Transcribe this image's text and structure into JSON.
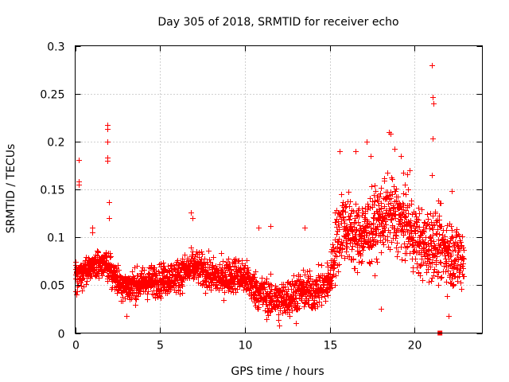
{
  "chart_data": {
    "type": "scatter",
    "title": "Day 305 of 2018, SRMTID for receiver echo",
    "xlabel": "GPS time / hours",
    "ylabel": "SRMTID / TECUs",
    "xlim": [
      0,
      24
    ],
    "ylim": [
      0,
      0.3
    ],
    "xticks": [
      0,
      5,
      10,
      15,
      20
    ],
    "xtick_labels": [
      "0",
      "5",
      "10",
      "15",
      "20"
    ],
    "yticks": [
      0,
      0.05,
      0.1,
      0.15,
      0.2,
      0.25,
      0.3
    ],
    "ytick_labels": [
      "0",
      "0.05",
      "0.1",
      "0.15",
      "0.2",
      "0.25",
      "0.3"
    ],
    "grid": true,
    "marker": "plus",
    "color": "#ff0000",
    "series": [
      {
        "name": "SRMTID",
        "trend": [
          [
            0.0,
            0.058
          ],
          [
            0.5,
            0.065
          ],
          [
            1.0,
            0.07
          ],
          [
            1.5,
            0.072
          ],
          [
            2.0,
            0.068
          ],
          [
            2.5,
            0.055
          ],
          [
            3.0,
            0.048
          ],
          [
            3.5,
            0.05
          ],
          [
            4.0,
            0.052
          ],
          [
            4.5,
            0.055
          ],
          [
            5.0,
            0.055
          ],
          [
            5.5,
            0.058
          ],
          [
            6.0,
            0.06
          ],
          [
            6.5,
            0.065
          ],
          [
            7.0,
            0.07
          ],
          [
            7.5,
            0.066
          ],
          [
            8.0,
            0.06
          ],
          [
            8.5,
            0.058
          ],
          [
            9.0,
            0.06
          ],
          [
            9.5,
            0.062
          ],
          [
            10.0,
            0.058
          ],
          [
            10.5,
            0.048
          ],
          [
            11.0,
            0.04
          ],
          [
            11.5,
            0.036
          ],
          [
            12.0,
            0.034
          ],
          [
            12.5,
            0.037
          ],
          [
            13.0,
            0.042
          ],
          [
            13.5,
            0.045
          ],
          [
            14.0,
            0.043
          ],
          [
            14.5,
            0.048
          ],
          [
            15.0,
            0.055
          ],
          [
            15.3,
            0.09
          ],
          [
            15.7,
            0.115
          ],
          [
            16.0,
            0.11
          ],
          [
            16.5,
            0.1
          ],
          [
            17.0,
            0.105
          ],
          [
            17.5,
            0.11
          ],
          [
            18.0,
            0.12
          ],
          [
            18.5,
            0.125
          ],
          [
            19.0,
            0.12
          ],
          [
            19.5,
            0.115
          ],
          [
            20.0,
            0.1
          ],
          [
            20.5,
            0.09
          ],
          [
            21.0,
            0.095
          ],
          [
            21.5,
            0.09
          ],
          [
            22.0,
            0.085
          ],
          [
            22.5,
            0.08
          ],
          [
            22.9,
            0.08
          ]
        ],
        "noise": [
          [
            0,
            0.015
          ],
          [
            10,
            0.018
          ],
          [
            15,
            0.02
          ],
          [
            15.3,
            0.035
          ],
          [
            23,
            0.035
          ]
        ],
        "points": [
          [
            0.2,
            0.181
          ],
          [
            0.2,
            0.158
          ],
          [
            0.2,
            0.155
          ],
          [
            1.0,
            0.11
          ],
          [
            1.0,
            0.105
          ],
          [
            1.9,
            0.217
          ],
          [
            1.9,
            0.213
          ],
          [
            1.9,
            0.2
          ],
          [
            1.9,
            0.183
          ],
          [
            1.9,
            0.18
          ],
          [
            2.0,
            0.137
          ],
          [
            2.0,
            0.12
          ],
          [
            6.8,
            0.126
          ],
          [
            6.9,
            0.12
          ],
          [
            10.8,
            0.11
          ],
          [
            11.5,
            0.112
          ],
          [
            13.5,
            0.11
          ],
          [
            15.6,
            0.19
          ],
          [
            16.5,
            0.19
          ],
          [
            17.2,
            0.2
          ],
          [
            17.4,
            0.185
          ],
          [
            18.5,
            0.21
          ],
          [
            18.6,
            0.208
          ],
          [
            18.8,
            0.192
          ],
          [
            19.2,
            0.185
          ],
          [
            19.7,
            0.17
          ],
          [
            21.0,
            0.28
          ],
          [
            21.05,
            0.246
          ],
          [
            21.1,
            0.24
          ],
          [
            21.05,
            0.203
          ],
          [
            21.0,
            0.165
          ],
          [
            22.2,
            0.148
          ],
          [
            18.0,
            0.025
          ],
          [
            13.0,
            0.01
          ],
          [
            12.0,
            0.008
          ],
          [
            3.0,
            0.018
          ],
          [
            22.0,
            0.018
          ]
        ],
        "square_marker": [
          21.5,
          0.0
        ]
      }
    ]
  }
}
